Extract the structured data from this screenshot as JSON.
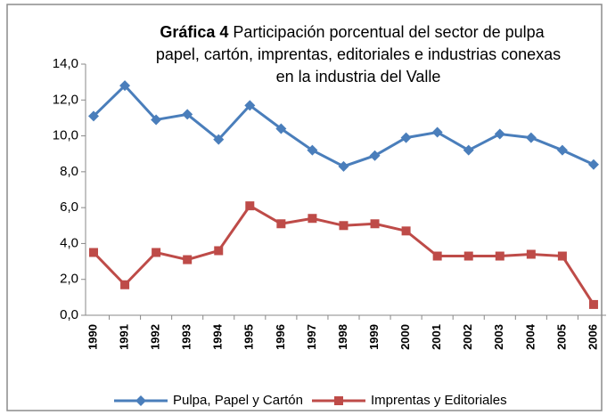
{
  "chart_data": {
    "type": "line",
    "title_label": "Gráfica 4",
    "title": [
      "Participación porcentual del sector de pulpa",
      "papel, cartón, imprentas, editoriales e industrias conexas",
      "en la industria del Valle"
    ],
    "categories": [
      "1990",
      "1991",
      "1992",
      "1993",
      "1994",
      "1995",
      "1996",
      "1997",
      "1998",
      "1999",
      "2000",
      "2001",
      "2002",
      "2003",
      "2004",
      "2005",
      "2006"
    ],
    "series": [
      {
        "name": "Pulpa, Papel y Cartón",
        "color": "#4a7ebb",
        "marker": "diamond",
        "values": [
          11.1,
          12.8,
          10.9,
          11.2,
          9.8,
          11.7,
          10.4,
          9.2,
          8.3,
          8.9,
          9.9,
          10.2,
          9.2,
          10.1,
          9.9,
          9.2,
          8.4
        ]
      },
      {
        "name": "Imprentas y Editoriales",
        "color": "#be4b48",
        "marker": "square",
        "values": [
          3.5,
          1.7,
          3.5,
          3.1,
          3.6,
          6.1,
          5.1,
          5.4,
          5.0,
          5.1,
          4.7,
          3.3,
          3.3,
          3.3,
          3.4,
          3.3,
          0.6
        ]
      }
    ],
    "ylim": [
      0,
      14
    ],
    "yticks": [
      {
        "value": 0,
        "label": "0,0"
      },
      {
        "value": 2,
        "label": "2,0"
      },
      {
        "value": 4,
        "label": "4,0"
      },
      {
        "value": 6,
        "label": "6,0"
      },
      {
        "value": 8,
        "label": "8,0"
      },
      {
        "value": 10,
        "label": "10,0"
      },
      {
        "value": 12,
        "label": "12,0"
      },
      {
        "value": 14,
        "label": "14,0"
      }
    ],
    "grid": false,
    "legend": "bottom"
  }
}
